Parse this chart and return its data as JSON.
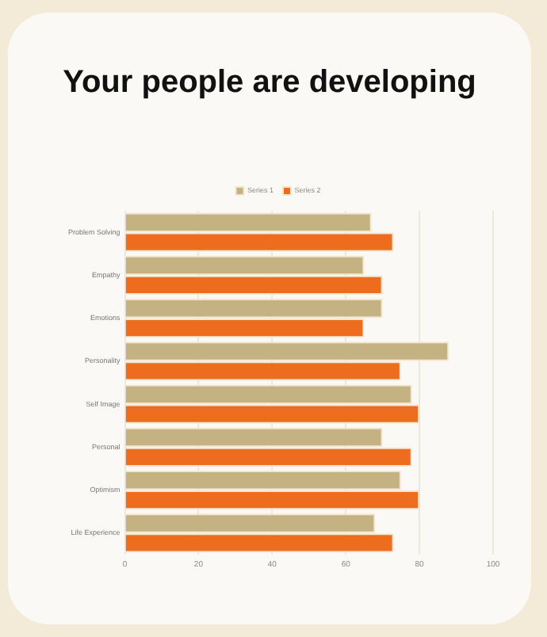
{
  "chart_data": {
    "type": "bar",
    "orientation": "horizontal",
    "title": "Your people are developing",
    "categories": [
      "Problem Solving",
      "Empathy",
      "Emotions",
      "Personality",
      "Self Image",
      "Personal",
      "Optimism",
      "Life Experience"
    ],
    "series": [
      {
        "name": "Series 1",
        "color": "#c4b283",
        "values": [
          67,
          65,
          70,
          88,
          78,
          70,
          75,
          68
        ]
      },
      {
        "name": "Series 2",
        "color": "#ee6c1e",
        "values": [
          73,
          70,
          65,
          75,
          80,
          78,
          80,
          73
        ]
      }
    ],
    "xlim": [
      0,
      100
    ],
    "xticks": [
      0,
      20,
      40,
      60,
      80,
      100
    ],
    "grid": "x",
    "legend": "top"
  }
}
